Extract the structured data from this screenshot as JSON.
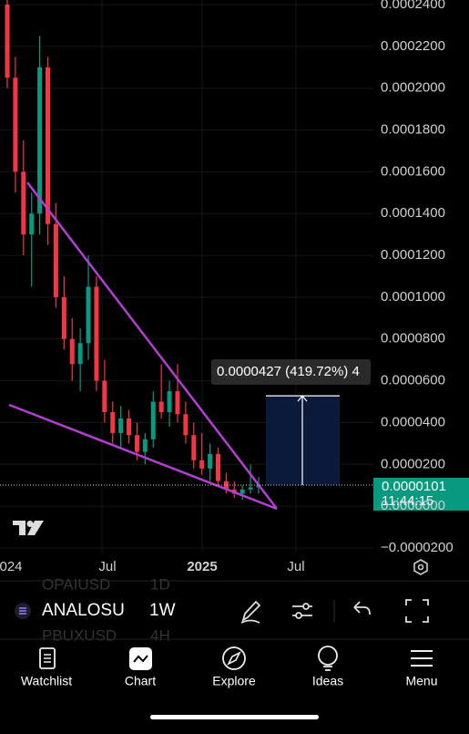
{
  "chart_data": {
    "type": "candlestick",
    "open": [
      0.00024,
      0.000205,
      0.00016,
      0.00013,
      0.00014,
      0.00021,
      0.000135,
      0.0001,
      8e-05,
      6.8e-05,
      7.8e-05,
      0.000105,
      6e-05,
      4.5e-05,
      3.5e-05,
      4.2e-05,
      3.4e-05,
      2.6e-05,
      3.2e-05,
      5e-05,
      4.5e-05,
      5.5e-05,
      4.4e-05,
      3.4e-05,
      2.2e-05,
      1.8e-05,
      2.5e-05,
      1.2e-05,
      8e-06,
      6e-06,
      8e-06,
      9e-06
    ],
    "high": [
      0.000245,
      0.000215,
      0.000175,
      0.00015,
      0.000225,
      0.000215,
      0.000145,
      0.00011,
      9e-05,
      8.5e-05,
      0.00012,
      0.00011,
      7e-05,
      5e-05,
      4.8e-05,
      4.6e-05,
      4e-05,
      3.5e-05,
      5.5e-05,
      6.8e-05,
      6e-05,
      6.8e-05,
      5e-05,
      4e-05,
      3.5e-05,
      3e-05,
      2.8e-05,
      1.6e-05,
      1.2e-05,
      1e-05,
      2e-05,
      1.4e-05
    ],
    "low": [
      0.0002,
      0.00015,
      0.00012,
      0.000105,
      0.00013,
      0.000125,
      9.5e-05,
      7.5e-05,
      6e-05,
      5.5e-05,
      7e-05,
      5.5e-05,
      4e-05,
      3e-05,
      2.8e-05,
      3e-05,
      2.2e-05,
      2e-05,
      2.8e-05,
      4.2e-05,
      3.8e-05,
      4e-05,
      3e-05,
      1.8e-05,
      1.5e-05,
      1.2e-05,
      1e-05,
      6e-06,
      4e-06,
      3e-06,
      6e-06,
      6e-06
    ],
    "close": [
      0.000205,
      0.00016,
      0.00013,
      0.00014,
      0.00021,
      0.000135,
      0.0001,
      8e-05,
      6.8e-05,
      7.8e-05,
      0.000105,
      6e-05,
      4.5e-05,
      3.5e-05,
      4.2e-05,
      3.4e-05,
      2.6e-05,
      3.2e-05,
      5e-05,
      4.5e-05,
      5.5e-05,
      4.4e-05,
      3.4e-05,
      2.2e-05,
      1.8e-05,
      2.5e-05,
      1.2e-05,
      8e-06,
      6e-06,
      8e-06,
      9e-06,
      1e-05
    ],
    "up_color": "#089981",
    "down_color": "#f23645",
    "ylim": [
      -2e-05,
      0.00024
    ],
    "yticks": [
      {
        "value": 0.00024,
        "label": "0.0002400"
      },
      {
        "value": 0.00022,
        "label": "0.0002200"
      },
      {
        "value": 0.0002,
        "label": "0.0002000"
      },
      {
        "value": 0.00018,
        "label": "0.0001800"
      },
      {
        "value": 0.00016,
        "label": "0.0001600"
      },
      {
        "value": 0.00014,
        "label": "0.0001400"
      },
      {
        "value": 0.00012,
        "label": "0.0001200"
      },
      {
        "value": 0.0001,
        "label": "0.0001000"
      },
      {
        "value": 8e-05,
        "label": "0.0000800"
      },
      {
        "value": 6e-05,
        "label": "0.0000600"
      },
      {
        "value": 4e-05,
        "label": "0.0000400"
      },
      {
        "value": 2e-05,
        "label": "0.0000200"
      },
      {
        "value": 0,
        "label": "0.0000000"
      },
      {
        "value": -2e-05,
        "label": "−0.0000200"
      }
    ],
    "x_labels": [
      "024",
      "Jul",
      "2025",
      "Jul"
    ],
    "last_price": {
      "value": 1.01e-05,
      "label": "0.0000101"
    },
    "countdown": "11:44:15",
    "measure": {
      "value": 4.27e-05,
      "label": "0.0000427 (419.72%) 4"
    }
  },
  "toolbar": {
    "symbol": "ANALOSU",
    "interval": "1W",
    "ghost": [
      {
        "symbol": "OPAIUSD",
        "interval": "1D"
      },
      {
        "symbol": "PBUXUSD",
        "interval": "4H"
      }
    ]
  },
  "nav": [
    "Watchlist",
    "Chart",
    "Explore",
    "Ideas",
    "Menu"
  ]
}
